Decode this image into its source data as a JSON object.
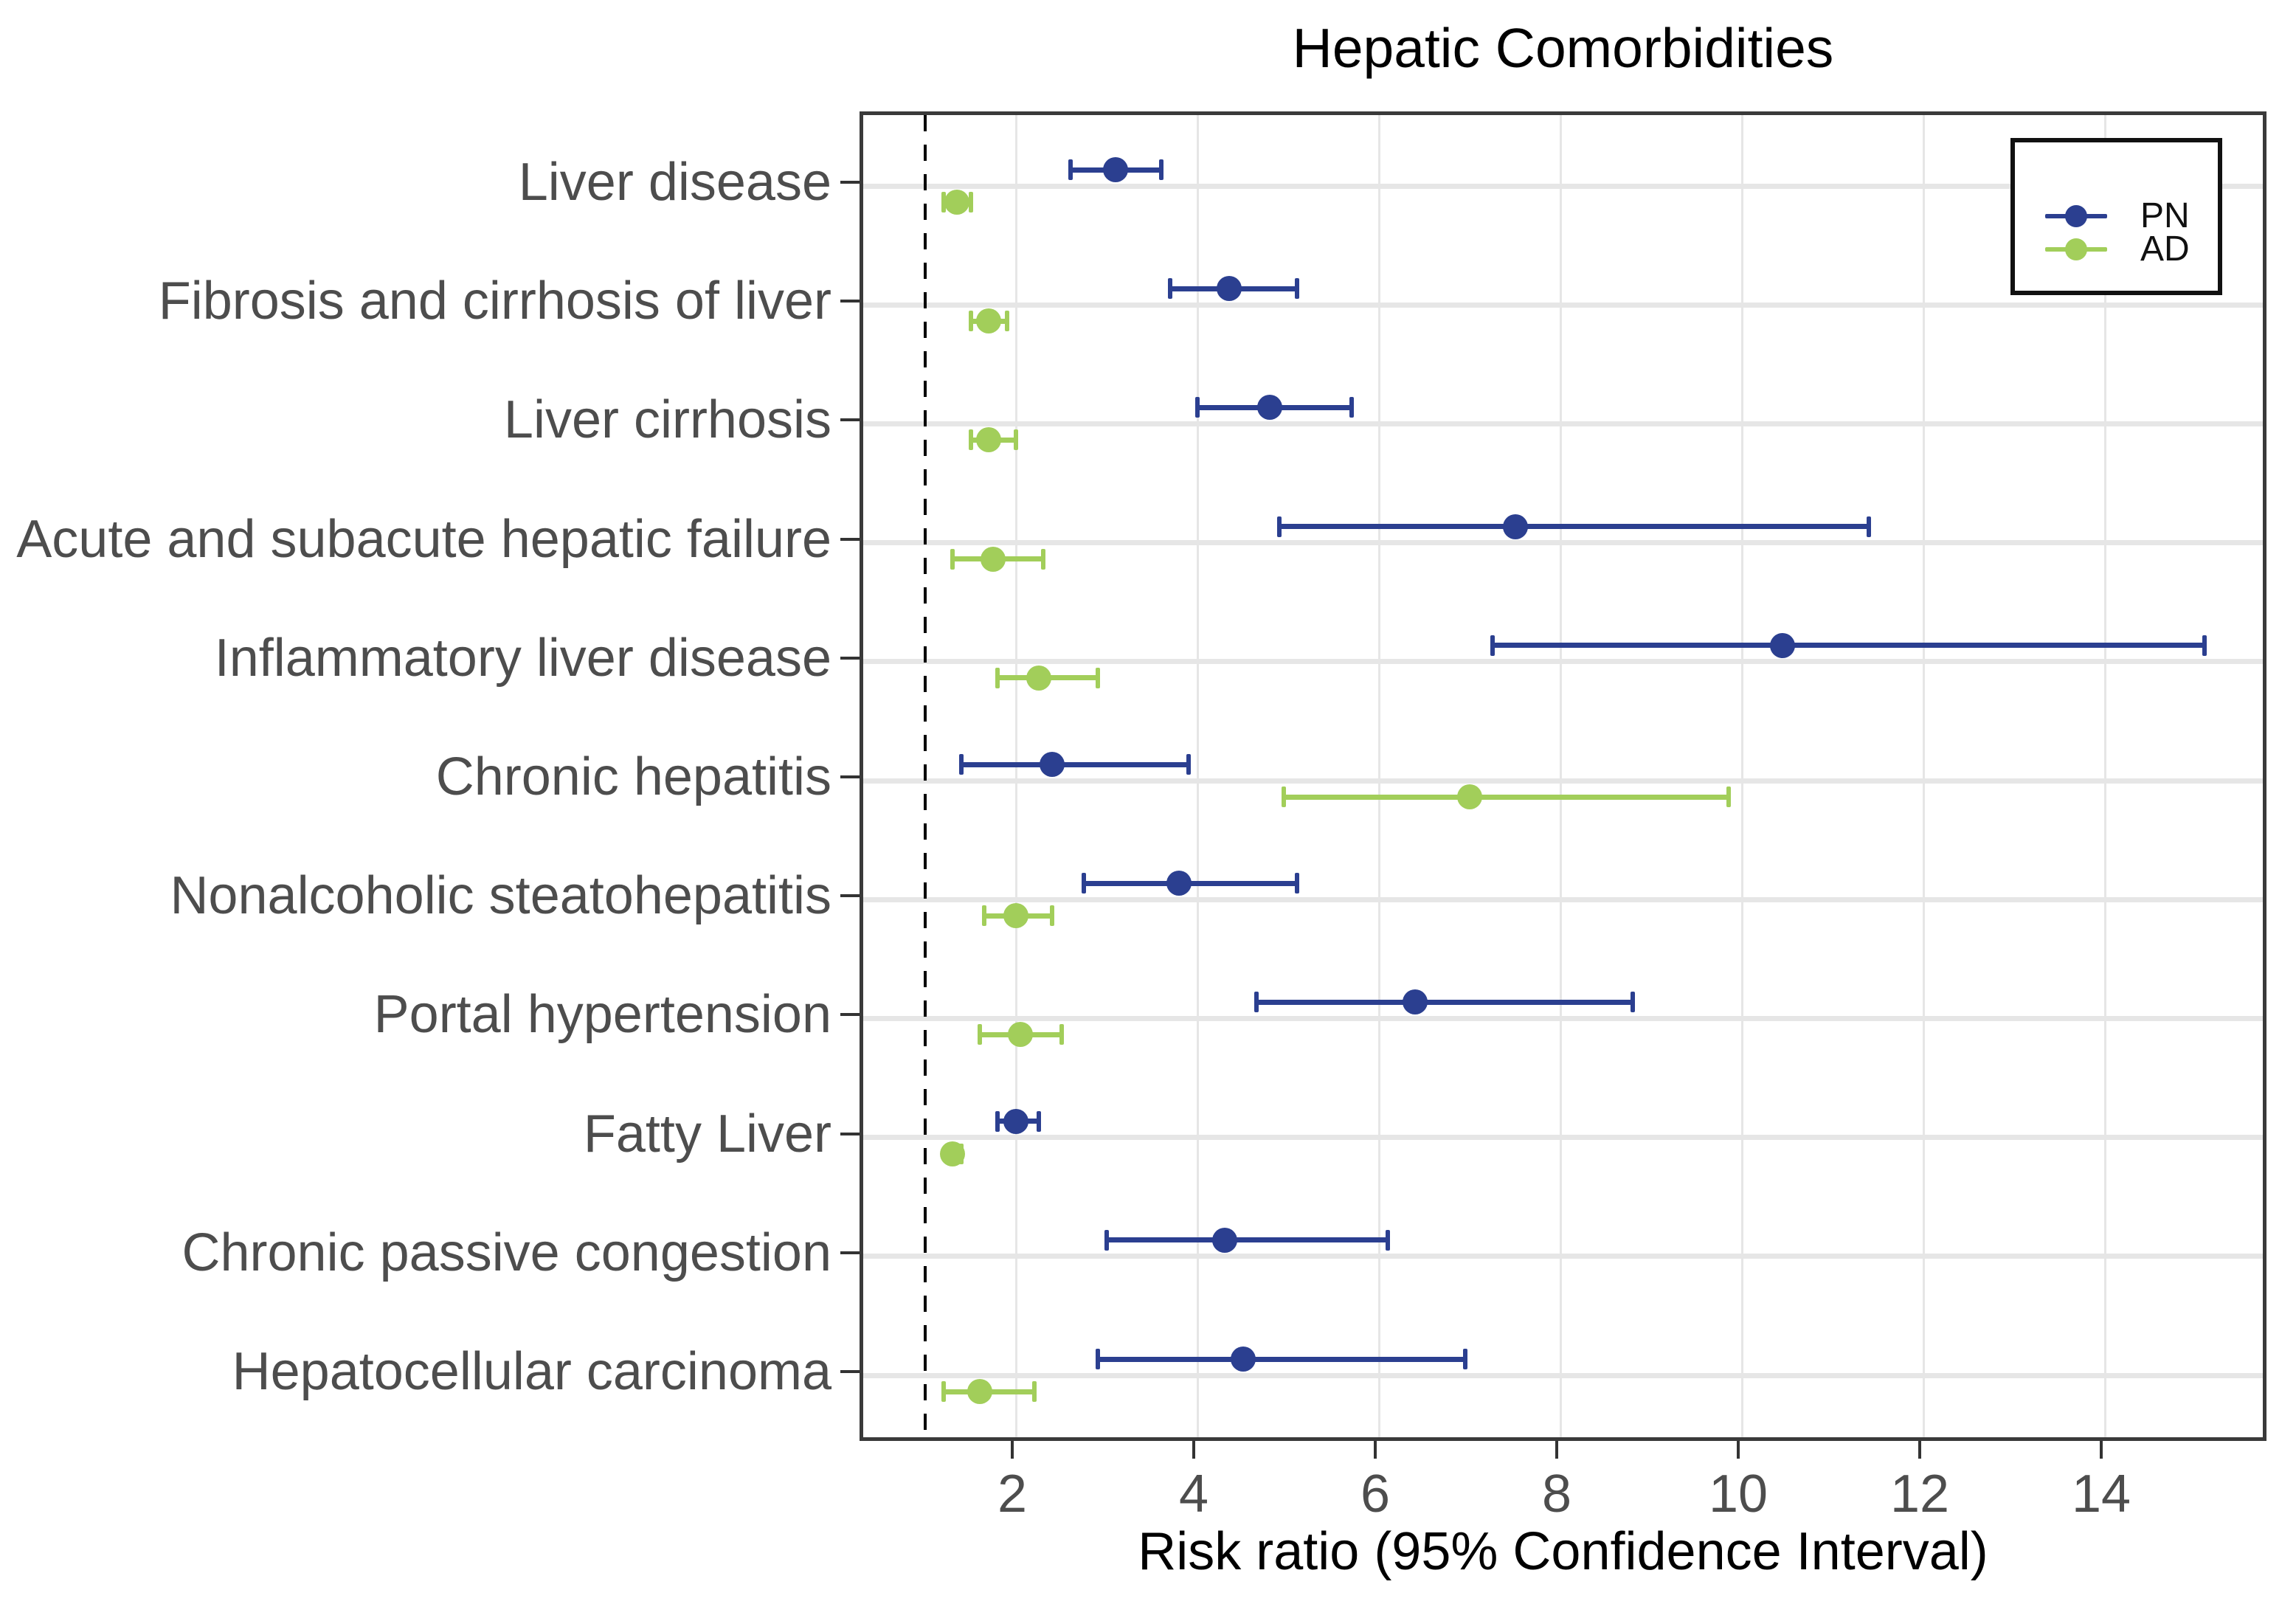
{
  "chart_data": {
    "type": "scatter",
    "subtype": "forest-plot-dot-and-whisker",
    "title": "Hepatic Comorbidities",
    "xlabel": "Risk ratio (95% Confidence Interval)",
    "ylabel": "",
    "x_domain": [
      0.3,
      15.8
    ],
    "x_ticks": [
      2,
      4,
      6,
      8,
      10,
      12,
      14
    ],
    "reference_line_x": 1,
    "grid": "major-only",
    "legend_position": "top-right-inside",
    "categories": [
      "Liver disease",
      "Fibrosis and cirrhosis of liver",
      "Liver cirrhosis",
      "Acute and subacute hepatic failure",
      "Inflammatory liver disease",
      "Chronic hepatitis",
      "Nonalcoholic steatohepatitis",
      "Portal hypertension",
      "Fatty Liver",
      "Chronic passive congestion",
      "Hepatocellular carcinoma"
    ],
    "series": [
      {
        "name": "PN",
        "color": "#2b3f90",
        "points": [
          {
            "rr": 3.1,
            "lo": 2.6,
            "hi": 3.6
          },
          {
            "rr": 4.35,
            "lo": 3.7,
            "hi": 5.1
          },
          {
            "rr": 4.8,
            "lo": 4.0,
            "hi": 5.7
          },
          {
            "rr": 7.5,
            "lo": 4.9,
            "hi": 11.4
          },
          {
            "rr": 10.45,
            "lo": 7.25,
            "hi": 15.1
          },
          {
            "rr": 2.4,
            "lo": 1.4,
            "hi": 3.9
          },
          {
            "rr": 3.8,
            "lo": 2.75,
            "hi": 5.1
          },
          {
            "rr": 6.4,
            "lo": 4.65,
            "hi": 8.8
          },
          {
            "rr": 2.0,
            "lo": 1.8,
            "hi": 2.25
          },
          {
            "rr": 4.3,
            "lo": 3.0,
            "hi": 6.1
          },
          {
            "rr": 4.5,
            "lo": 2.9,
            "hi": 6.95
          }
        ]
      },
      {
        "name": "AD",
        "color": "#a2ce5a",
        "points": [
          {
            "rr": 1.35,
            "lo": 1.2,
            "hi": 1.5
          },
          {
            "rr": 1.7,
            "lo": 1.5,
            "hi": 1.9
          },
          {
            "rr": 1.7,
            "lo": 1.5,
            "hi": 2.0
          },
          {
            "rr": 1.75,
            "lo": 1.3,
            "hi": 2.3
          },
          {
            "rr": 2.25,
            "lo": 1.8,
            "hi": 2.9
          },
          {
            "rr": 7.0,
            "lo": 4.95,
            "hi": 9.85
          },
          {
            "rr": 2.0,
            "lo": 1.65,
            "hi": 2.4
          },
          {
            "rr": 2.05,
            "lo": 1.6,
            "hi": 2.5
          },
          {
            "rr": 1.3,
            "lo": 1.25,
            "hi": 1.4
          },
          null,
          {
            "rr": 1.6,
            "lo": 1.2,
            "hi": 2.2
          }
        ]
      }
    ]
  }
}
